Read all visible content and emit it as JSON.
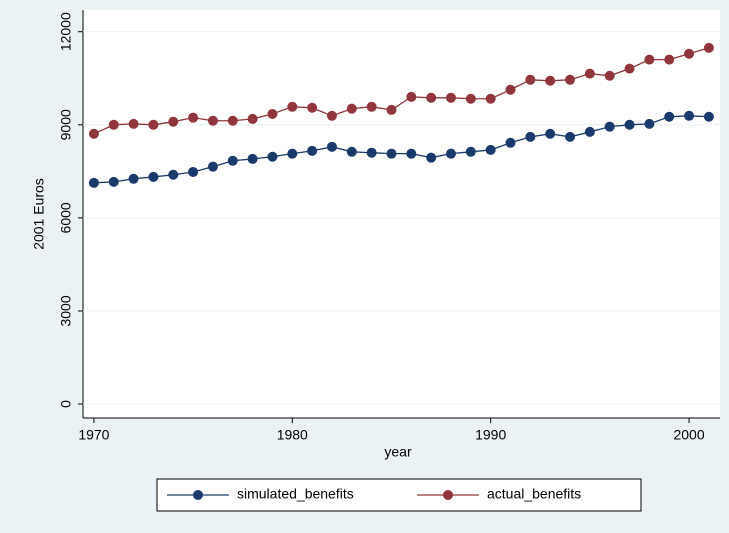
{
  "chart_data": {
    "type": "line",
    "x": [
      1970,
      1971,
      1972,
      1973,
      1974,
      1975,
      1976,
      1977,
      1978,
      1979,
      1980,
      1981,
      1982,
      1983,
      1984,
      1985,
      1986,
      1987,
      1988,
      1989,
      1990,
      1991,
      1992,
      1993,
      1994,
      1995,
      1996,
      1997,
      1998,
      1999,
      2000,
      2001
    ],
    "series": [
      {
        "name": "simulated_benefits",
        "color": "#1a3a6c",
        "values": [
          7130,
          7160,
          7260,
          7320,
          7390,
          7480,
          7650,
          7840,
          7900,
          7970,
          8070,
          8160,
          8290,
          8130,
          8100,
          8070,
          8070,
          7940,
          8070,
          8130,
          8190,
          8420,
          8610,
          8710,
          8610,
          8770,
          8940,
          9000,
          9030,
          9260,
          9290,
          9260
        ]
      },
      {
        "name": "actual_benefits",
        "color": "#90353b",
        "values": [
          8710,
          9000,
          9030,
          9000,
          9100,
          9230,
          9130,
          9130,
          9190,
          9350,
          9580,
          9550,
          9290,
          9520,
          9580,
          9480,
          9900,
          9870,
          9870,
          9840,
          9840,
          10130,
          10450,
          10420,
          10450,
          10650,
          10580,
          10810,
          11100,
          11100,
          11290,
          11480
        ]
      }
    ],
    "xlabel": "year",
    "ylabel": "2001 Euros",
    "xlim": [
      1969.45,
      2001.56
    ],
    "xticks": [
      1970,
      1980,
      1990,
      2000
    ],
    "ylim": [
      -450,
      12700
    ],
    "yticks": [
      0,
      3000,
      6000,
      9000,
      12000
    ],
    "grid": true,
    "legend": "bottom"
  }
}
